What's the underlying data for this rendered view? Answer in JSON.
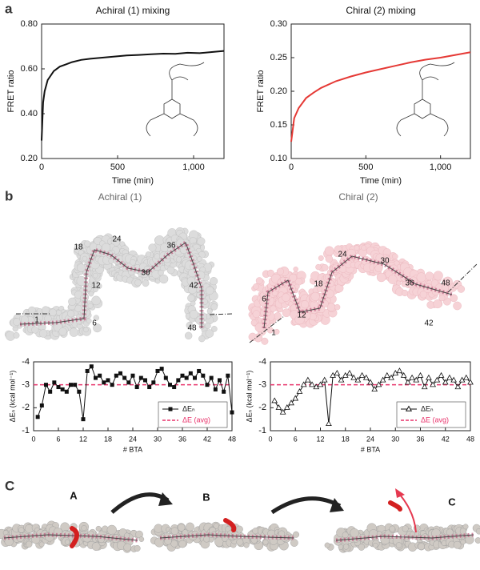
{
  "figure": {
    "panel_labels": [
      "a",
      "b",
      "C"
    ],
    "panel_b_titles": [
      "Achiral (1)",
      "Chiral (2)"
    ],
    "achiral_residue_labels": [
      "1",
      "6",
      "12",
      "18",
      "24",
      "30",
      "36",
      "42",
      "48"
    ],
    "chiral_residue_labels": [
      "1",
      "6",
      "12",
      "18",
      "24",
      "30",
      "36",
      "42",
      "48"
    ],
    "panel_c_states": [
      "A",
      "B",
      "C"
    ]
  },
  "chart_data": [
    {
      "type": "line",
      "title": "Achiral (1) mixing",
      "x_label": "Time (min)",
      "y_label": "FRET ratio",
      "x": [
        0,
        10,
        20,
        40,
        80,
        120,
        160,
        200,
        260,
        320,
        400,
        480,
        560,
        640,
        720,
        800,
        880,
        960,
        1040,
        1120,
        1200
      ],
      "series": [
        {
          "color": "#111111",
          "values": [
            0.28,
            0.45,
            0.5,
            0.55,
            0.59,
            0.61,
            0.62,
            0.63,
            0.64,
            0.645,
            0.65,
            0.655,
            0.66,
            0.662,
            0.665,
            0.668,
            0.667,
            0.672,
            0.67,
            0.675,
            0.68
          ]
        }
      ],
      "xlim": [
        0,
        1200
      ],
      "xticks": [
        0,
        500,
        {
          "value": 1000,
          "label": "1,000"
        }
      ],
      "ylim": [
        0.2,
        0.8
      ],
      "yticks": [
        {
          "value": 0.2,
          "label": "0.20"
        },
        {
          "value": 0.4,
          "label": "0.40"
        },
        {
          "value": 0.6,
          "label": "0.60"
        },
        {
          "value": 0.8,
          "label": "0.80"
        }
      ]
    },
    {
      "type": "line",
      "title": "Chiral (2) mixing",
      "x_label": "Time (min)",
      "y_label": "FRET ratio",
      "x": [
        0,
        20,
        50,
        100,
        150,
        200,
        300,
        400,
        500,
        600,
        700,
        800,
        900,
        1000,
        1100,
        1200
      ],
      "series": [
        {
          "color": "#e53935",
          "values": [
            0.125,
            0.16,
            0.175,
            0.19,
            0.198,
            0.205,
            0.215,
            0.222,
            0.228,
            0.233,
            0.238,
            0.243,
            0.247,
            0.25,
            0.254,
            0.258
          ]
        }
      ],
      "xlim": [
        0,
        1200
      ],
      "xticks": [
        0,
        500,
        {
          "value": 1000,
          "label": "1,000"
        }
      ],
      "ylim": [
        0.1,
        0.3
      ],
      "yticks": [
        {
          "value": 0.1,
          "label": "0.10"
        },
        {
          "value": 0.15,
          "label": "0.15"
        },
        {
          "value": 0.2,
          "label": "0.20"
        },
        {
          "value": 0.25,
          "label": "0.25"
        },
        {
          "value": 0.3,
          "label": "0.30"
        }
      ]
    },
    {
      "type": "line",
      "marker": "square",
      "x_label": "# BTA",
      "y_label": "ΔEₙ (kcal mol⁻¹)",
      "legend": "lower right",
      "x": [
        1,
        2,
        3,
        4,
        5,
        6,
        7,
        8,
        9,
        10,
        11,
        12,
        13,
        14,
        15,
        16,
        17,
        18,
        19,
        20,
        21,
        22,
        23,
        24,
        25,
        26,
        27,
        28,
        29,
        30,
        31,
        32,
        33,
        34,
        35,
        36,
        37,
        38,
        39,
        40,
        41,
        42,
        43,
        44,
        45,
        46,
        47,
        48
      ],
      "series": [
        {
          "name": "ΔEₙ",
          "color": "#111111",
          "values": [
            -1.6,
            -2.1,
            -3.0,
            -2.7,
            -3.1,
            -2.9,
            -2.8,
            -2.7,
            -3.0,
            -3.0,
            -2.7,
            -1.5,
            -3.6,
            -3.8,
            -3.3,
            -3.4,
            -3.1,
            -3.2,
            -3.0,
            -3.4,
            -3.5,
            -3.3,
            -3.1,
            -3.4,
            -2.9,
            -3.3,
            -3.2,
            -2.9,
            -3.1,
            -3.6,
            -3.7,
            -3.3,
            -3.0,
            -2.9,
            -3.2,
            -3.4,
            -3.3,
            -3.5,
            -3.3,
            -3.6,
            -3.4,
            -3.0,
            -3.3,
            -2.8,
            -3.2,
            -2.7,
            -3.4,
            -1.8
          ]
        }
      ],
      "reference_line": {
        "name": "ΔE (avg)",
        "value": -3.0,
        "color": "#e8336b"
      },
      "xlim": [
        0,
        48
      ],
      "xticks": [
        0,
        6,
        12,
        18,
        24,
        30,
        36,
        42,
        48
      ],
      "ylim": [
        -1,
        -4
      ],
      "yticks": [
        -1,
        -2,
        -3,
        -4
      ]
    },
    {
      "type": "line",
      "marker": "triangle",
      "x_label": "# BTA",
      "y_label": "ΔEₙ (kcal mol⁻¹)",
      "legend": "lower right",
      "x": [
        1,
        2,
        3,
        4,
        5,
        6,
        7,
        8,
        9,
        10,
        11,
        12,
        13,
        14,
        15,
        16,
        17,
        18,
        19,
        20,
        21,
        22,
        23,
        24,
        25,
        26,
        27,
        28,
        29,
        30,
        31,
        32,
        33,
        34,
        35,
        36,
        37,
        38,
        39,
        40,
        41,
        42,
        43,
        44,
        45,
        46,
        47,
        48
      ],
      "series": [
        {
          "name": "ΔEₙ",
          "color": "#111111",
          "values": [
            -2.3,
            -2.0,
            -1.8,
            -2.0,
            -2.2,
            -2.4,
            -2.7,
            -3.0,
            -3.2,
            -3.0,
            -2.9,
            -3.0,
            -3.2,
            -1.3,
            -3.4,
            -3.5,
            -3.2,
            -3.4,
            -3.5,
            -3.3,
            -3.2,
            -3.4,
            -3.3,
            -3.1,
            -2.8,
            -3.0,
            -3.2,
            -3.4,
            -3.3,
            -3.5,
            -3.6,
            -3.4,
            -3.1,
            -3.3,
            -3.2,
            -3.4,
            -2.9,
            -3.3,
            -3.0,
            -3.2,
            -3.4,
            -3.1,
            -3.3,
            -3.2,
            -2.9,
            -3.2,
            -3.3,
            -3.1
          ]
        }
      ],
      "reference_line": {
        "name": "ΔE (avg)",
        "value": -3.0,
        "color": "#e8336b"
      },
      "xlim": [
        0,
        48
      ],
      "xticks": [
        0,
        6,
        12,
        18,
        24,
        30,
        36,
        42,
        48
      ],
      "ylim": [
        -1,
        -4
      ],
      "yticks": [
        -1,
        -2,
        -3,
        -4
      ]
    }
  ]
}
